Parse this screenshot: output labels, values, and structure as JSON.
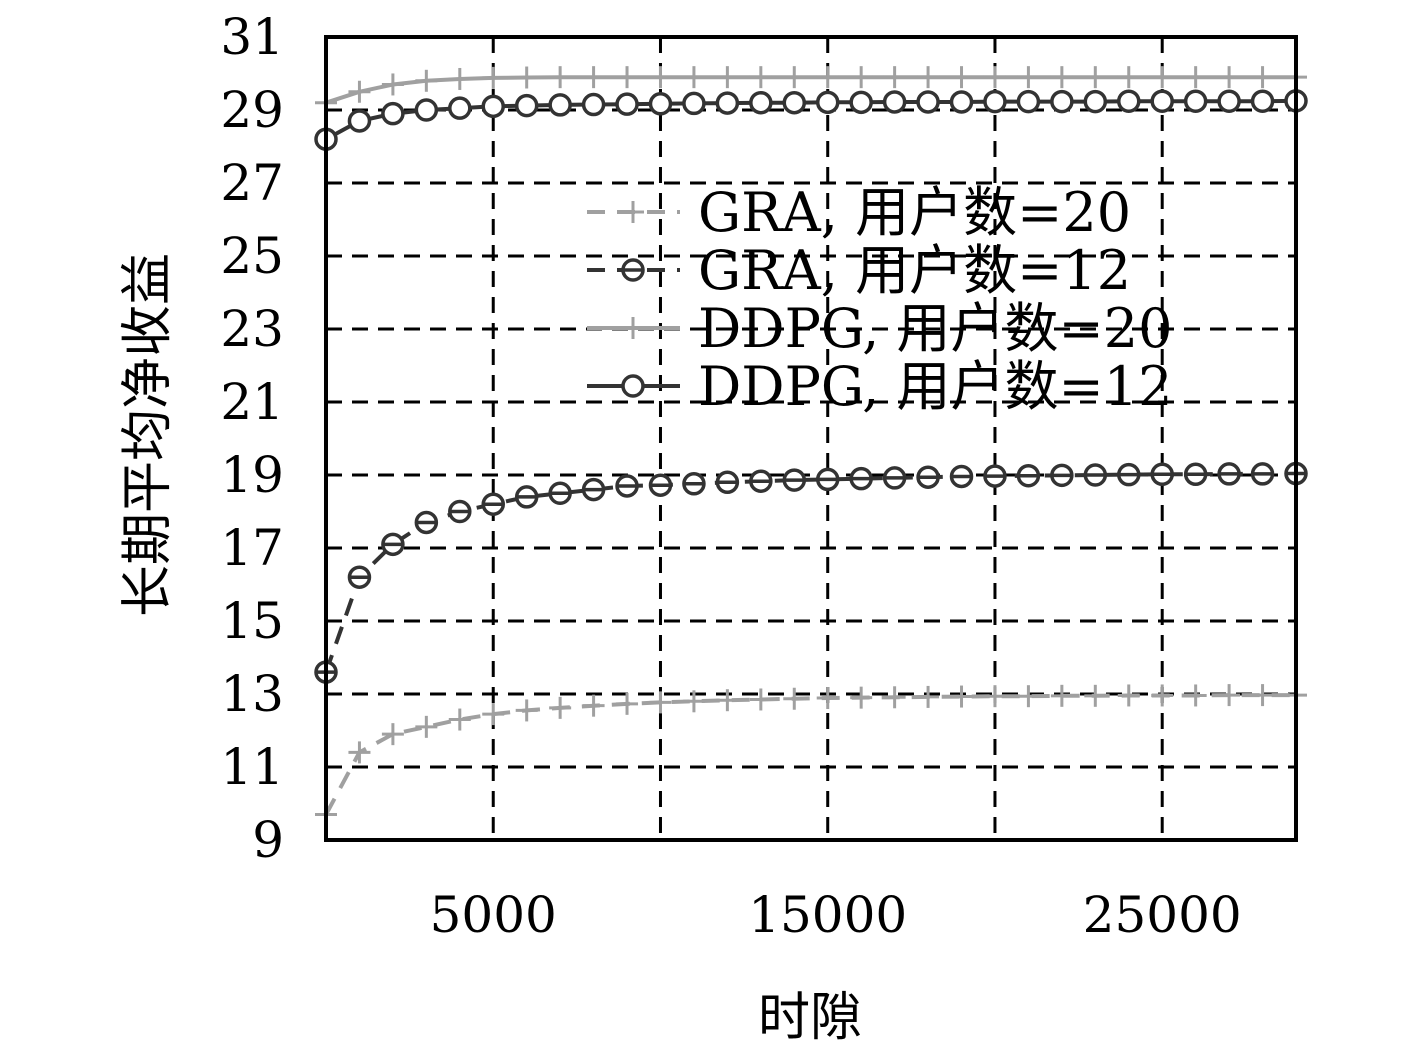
{
  "chart_data": {
    "type": "line",
    "xlabel": "时隙",
    "ylabel": "长期平均净收益",
    "xlim": [
      0,
      29000
    ],
    "ylim": [
      9,
      31
    ],
    "xticks": [
      5000,
      15000,
      25000
    ],
    "xgrid": [
      0,
      5000,
      10000,
      15000,
      20000,
      25000
    ],
    "yticks": [
      9,
      11,
      13,
      15,
      17,
      19,
      21,
      23,
      25,
      27,
      29,
      31
    ],
    "grid": true,
    "legend_position": "upper-right",
    "series": [
      {
        "name": "GRA, 用户数=20",
        "color": "#a0a0a0",
        "dash": true,
        "marker": "plus",
        "x": [
          0,
          1000,
          2000,
          3000,
          4000,
          5000,
          6000,
          7000,
          8000,
          9000,
          10000,
          11000,
          12000,
          13000,
          14000,
          15000,
          16000,
          17000,
          18000,
          19000,
          20000,
          21000,
          22000,
          23000,
          24000,
          25000,
          26000,
          27000,
          28000,
          29000
        ],
        "values": [
          9.7,
          11.4,
          11.9,
          12.1,
          12.3,
          12.45,
          12.55,
          12.62,
          12.68,
          12.73,
          12.77,
          12.8,
          12.83,
          12.85,
          12.87,
          12.89,
          12.9,
          12.91,
          12.92,
          12.93,
          12.94,
          12.94,
          12.95,
          12.95,
          12.96,
          12.96,
          12.96,
          12.97,
          12.97,
          12.97
        ]
      },
      {
        "name": "GRA, 用户数=12",
        "color": "#333333",
        "dash": true,
        "marker": "circle-bar",
        "x": [
          0,
          1000,
          2000,
          3000,
          4000,
          5000,
          6000,
          7000,
          8000,
          9000,
          10000,
          11000,
          12000,
          13000,
          14000,
          15000,
          16000,
          17000,
          18000,
          19000,
          20000,
          21000,
          22000,
          23000,
          24000,
          25000,
          26000,
          27000,
          28000,
          29000
        ],
        "values": [
          13.6,
          16.2,
          17.1,
          17.7,
          18.0,
          18.2,
          18.4,
          18.5,
          18.6,
          18.7,
          18.72,
          18.76,
          18.8,
          18.83,
          18.86,
          18.88,
          18.9,
          18.92,
          18.94,
          18.96,
          18.97,
          18.98,
          18.99,
          19.0,
          19.01,
          19.02,
          19.02,
          19.03,
          19.03,
          19.04
        ]
      },
      {
        "name": "DDPG, 用户数=20",
        "color": "#a0a0a0",
        "dash": false,
        "marker": "plus",
        "x": [
          0,
          1000,
          2000,
          3000,
          4000,
          5000,
          6000,
          7000,
          8000,
          9000,
          10000,
          11000,
          12000,
          13000,
          14000,
          15000,
          16000,
          17000,
          18000,
          19000,
          20000,
          21000,
          22000,
          23000,
          24000,
          25000,
          26000,
          27000,
          28000,
          29000
        ],
        "values": [
          29.2,
          29.5,
          29.7,
          29.8,
          29.85,
          29.88,
          29.89,
          29.9,
          29.9,
          29.9,
          29.9,
          29.9,
          29.9,
          29.9,
          29.9,
          29.9,
          29.9,
          29.9,
          29.9,
          29.9,
          29.9,
          29.9,
          29.9,
          29.9,
          29.9,
          29.9,
          29.9,
          29.9,
          29.9,
          29.9
        ]
      },
      {
        "name": "DDPG, 用户数=12",
        "color": "#333333",
        "dash": false,
        "marker": "circle",
        "x": [
          0,
          1000,
          2000,
          3000,
          4000,
          5000,
          6000,
          7000,
          8000,
          9000,
          10000,
          11000,
          12000,
          13000,
          14000,
          15000,
          16000,
          17000,
          18000,
          19000,
          20000,
          21000,
          22000,
          23000,
          24000,
          25000,
          26000,
          27000,
          28000,
          29000
        ],
        "values": [
          28.2,
          28.7,
          28.9,
          29.0,
          29.05,
          29.1,
          29.12,
          29.14,
          29.15,
          29.16,
          29.17,
          29.18,
          29.19,
          29.2,
          29.2,
          29.21,
          29.21,
          29.22,
          29.22,
          29.22,
          29.23,
          29.23,
          29.23,
          29.23,
          29.24,
          29.24,
          29.24,
          29.24,
          29.24,
          29.25
        ]
      }
    ]
  }
}
